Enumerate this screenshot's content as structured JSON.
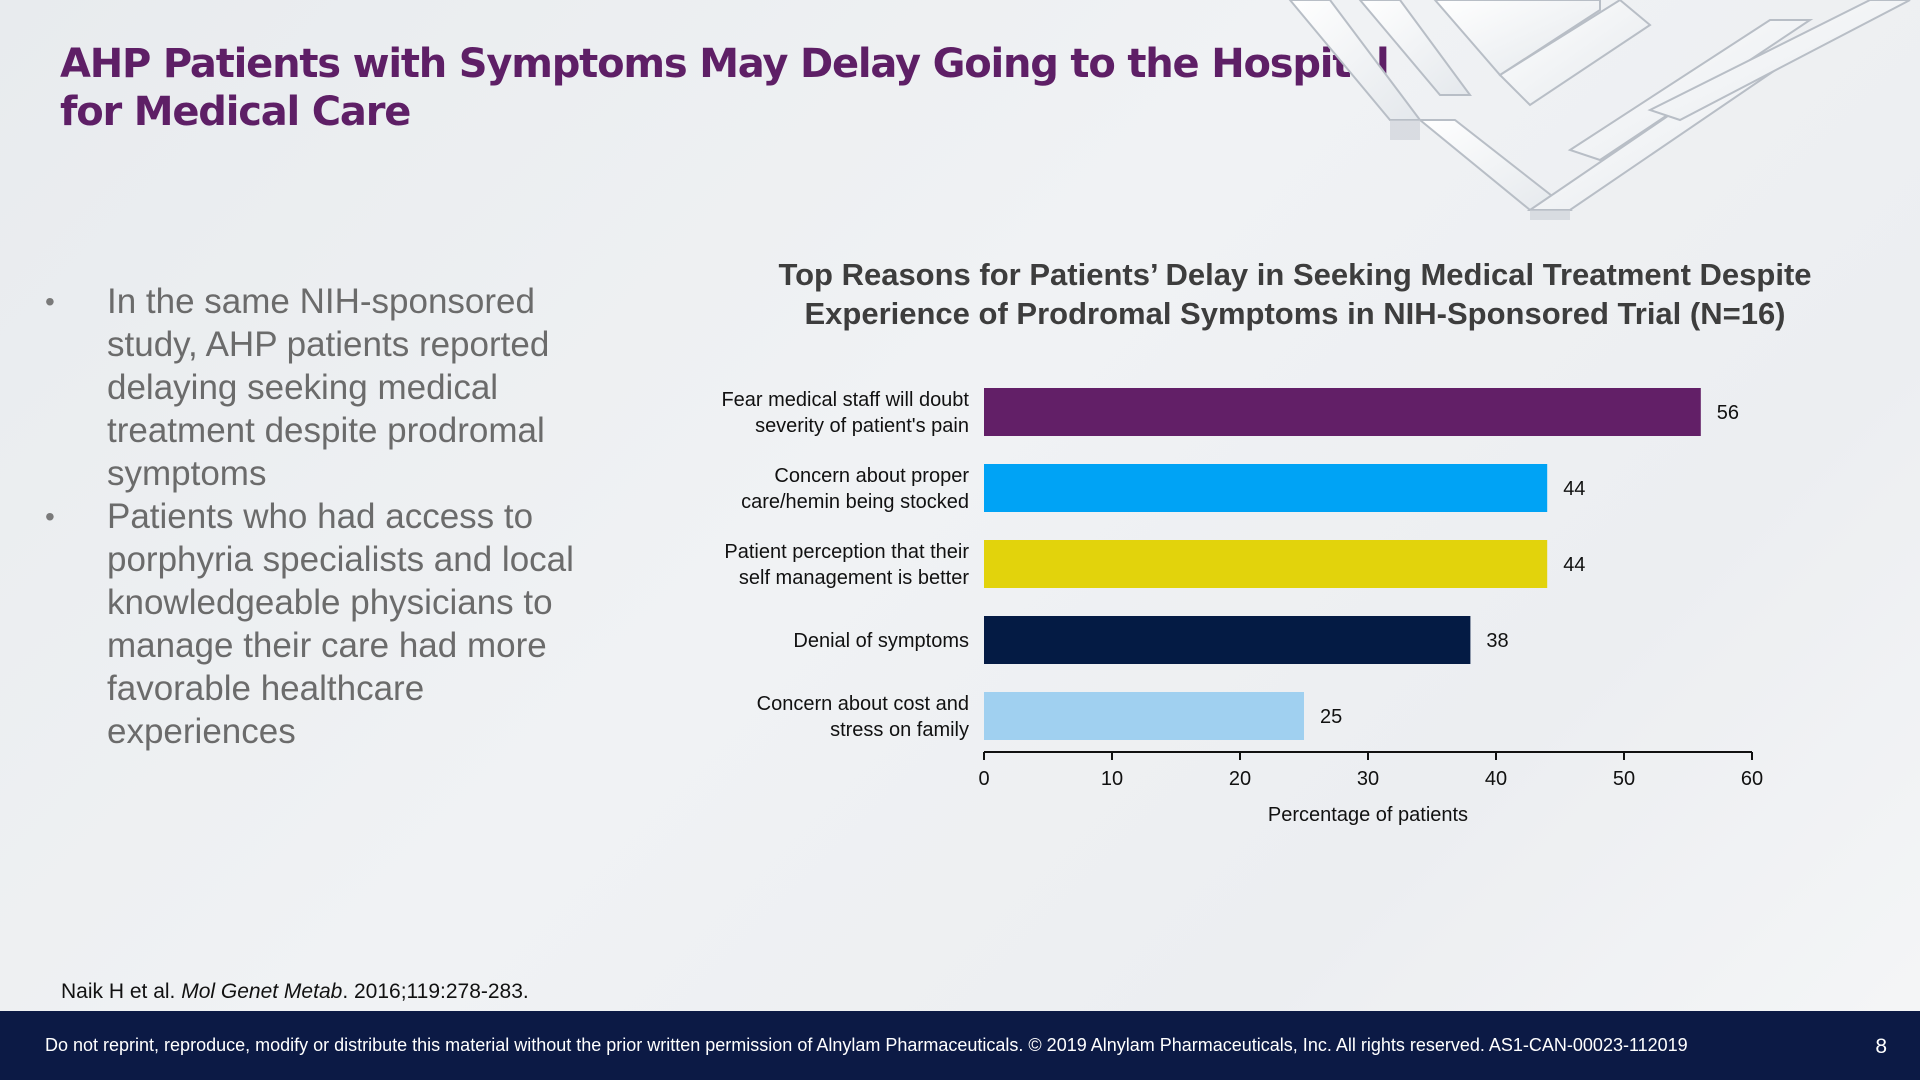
{
  "slide": {
    "title": "AHP Patients with Symptoms May Delay Going to the Hospital for Medical Care",
    "bullets": [
      "In the same NIH-sponsored study, AHP patients reported delaying seeking medical treatment despite prodromal symptoms",
      "Patients who had access to porphyria specialists and local knowledgeable physicians to manage their care had more favorable healthcare experiences"
    ],
    "bullet_glyph": "•",
    "reference": {
      "authors": "Naik H et al. ",
      "journal": "Mol Genet Metab",
      "details": ". 2016;119:278-283."
    },
    "footer": {
      "notice": "Do not reprint, reproduce, modify or distribute this material without the prior written permission of Alnylam Pharmaceuticals. © 2019 Alnylam Pharmaceuticals, Inc. All rights reserved. AS1-CAN-00023-112019",
      "page_number": "8"
    },
    "colors": {
      "title": "#5e1f66",
      "footer_bg": "#0c1a45"
    }
  },
  "chart_data": {
    "type": "bar",
    "orientation": "horizontal",
    "title": "Top Reasons for Patients’ Delay in Seeking Medical Treatment Despite Experience of Prodromal Symptoms in NIH-Sponsored Trial (N=16)",
    "categories": [
      [
        "Fear medical staff will doubt",
        "severity of patient's pain"
      ],
      [
        "Concern about proper",
        "care/hemin being stocked"
      ],
      [
        "Patient perception that their",
        "self management is better"
      ],
      [
        "Denial of symptoms"
      ],
      [
        "Concern about cost and",
        "stress on family"
      ]
    ],
    "values": [
      56,
      44,
      44,
      38,
      25
    ],
    "bar_colors": [
      "#621f67",
      "#00a3f5",
      "#e2d30c",
      "#041b44",
      "#a0d0f0"
    ],
    "xlabel": "Percentage of patients",
    "xlim": [
      0,
      60
    ],
    "xticks": [
      0,
      10,
      20,
      30,
      40,
      50,
      60
    ],
    "grid": false,
    "data_labels": true
  }
}
